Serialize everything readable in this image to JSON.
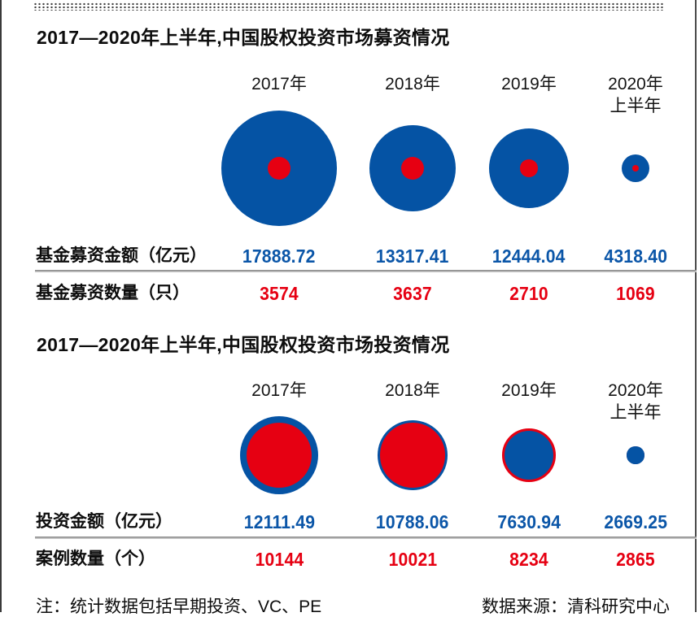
{
  "colors": {
    "amount_blue": "#0553a4",
    "count_red": "#e60012",
    "value_text_blue": "#0b56a8",
    "value_text_red": "#e60012",
    "divider_gray": "#8e8e8e"
  },
  "charts": [
    {
      "title": "2017—2020年上半年,中国股权投资市场募资情况",
      "years": [
        "2017年",
        "2018年",
        "2019年",
        "2020年"
      ],
      "year4_line2": "上半年",
      "rows": [
        {
          "label": "基金募资金额（亿元）",
          "values": [
            "17888.72",
            "13317.41",
            "12444.04",
            "4318.40"
          ]
        },
        {
          "label": "基金募资数量（只）",
          "values": [
            "3574",
            "3637",
            "2710",
            "1069"
          ]
        }
      ]
    },
    {
      "title": "2017—2020年上半年,中国股权投资市场投资情况",
      "years": [
        "2017年",
        "2018年",
        "2019年",
        "2020年"
      ],
      "year4_line2": "上半年",
      "rows": [
        {
          "label": "投资金额（亿元）",
          "values": [
            "12111.49",
            "10788.06",
            "7630.94",
            "2669.25"
          ]
        },
        {
          "label": "案例数量（个）",
          "values": [
            "10144",
            "10021",
            "8234",
            "2865"
          ]
        }
      ]
    }
  ],
  "footer": {
    "note": "注：统计数据包括早期投资、VC、PE",
    "source": "数据来源：清科研究中心"
  },
  "chart_data": [
    {
      "type": "bubble",
      "title": "2017—2020年上半年,中国股权投资市场募资情况",
      "categories": [
        "2017年",
        "2018年",
        "2019年",
        "2020年上半年"
      ],
      "series": [
        {
          "name": "基金募资金额（亿元）",
          "color": "#0553a4",
          "values": [
            17888.72,
            13317.41,
            12444.04,
            4318.4
          ]
        },
        {
          "name": "基金募资数量（只）",
          "color": "#e60012",
          "values": [
            3574,
            3637,
            2710,
            1069
          ]
        }
      ],
      "encoding": "concentric circles, radius proportional to value, smaller circle drawn on top",
      "legend_position": "none",
      "grid": false
    },
    {
      "type": "bubble",
      "title": "2017—2020年上半年,中国股权投资市场投资情况",
      "categories": [
        "2017年",
        "2018年",
        "2019年",
        "2020年上半年"
      ],
      "series": [
        {
          "name": "投资金额（亿元）",
          "color": "#0553a4",
          "values": [
            12111.49,
            10788.06,
            7630.94,
            2669.25
          ]
        },
        {
          "name": "案例数量（个）",
          "color": "#e60012",
          "values": [
            10144,
            10021,
            8234,
            2865
          ]
        }
      ],
      "encoding": "concentric circles, radius proportional to value, smaller circle drawn on top",
      "legend_position": "none",
      "grid": false
    }
  ]
}
